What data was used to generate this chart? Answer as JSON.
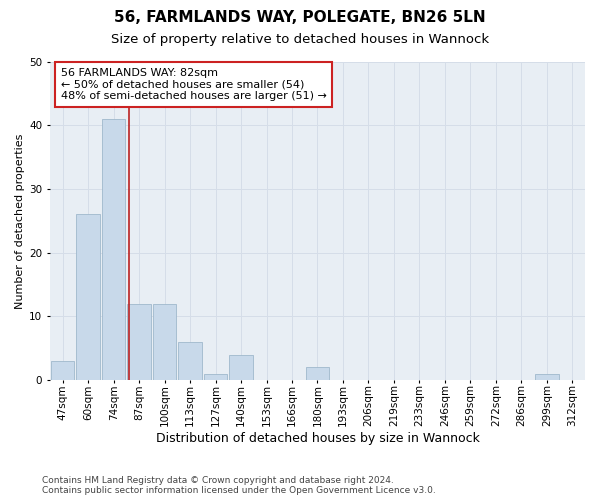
{
  "title1": "56, FARMLANDS WAY, POLEGATE, BN26 5LN",
  "title2": "Size of property relative to detached houses in Wannock",
  "xlabel": "Distribution of detached houses by size in Wannock",
  "ylabel": "Number of detached properties",
  "categories": [
    "47sqm",
    "60sqm",
    "74sqm",
    "87sqm",
    "100sqm",
    "113sqm",
    "127sqm",
    "140sqm",
    "153sqm",
    "166sqm",
    "180sqm",
    "193sqm",
    "206sqm",
    "219sqm",
    "233sqm",
    "246sqm",
    "259sqm",
    "272sqm",
    "286sqm",
    "299sqm",
    "312sqm"
  ],
  "values": [
    3,
    26,
    41,
    12,
    12,
    6,
    1,
    4,
    0,
    0,
    2,
    0,
    0,
    0,
    0,
    0,
    0,
    0,
    0,
    1,
    0
  ],
  "bar_color": "#c8d9ea",
  "bar_edge_color": "#a0b8cc",
  "grid_color": "#d5dde8",
  "background_color": "#e8eef4",
  "vline_color": "#bb2222",
  "ylim": [
    0,
    50
  ],
  "vline_x": 2.62,
  "annotation_text": "56 FARMLANDS WAY: 82sqm\n← 50% of detached houses are smaller (54)\n48% of semi-detached houses are larger (51) →",
  "annotation_box_color": "#ffffff",
  "annotation_box_edge_color": "#cc2222",
  "footer1": "Contains HM Land Registry data © Crown copyright and database right 2024.",
  "footer2": "Contains public sector information licensed under the Open Government Licence v3.0.",
  "title1_fontsize": 11,
  "title2_fontsize": 9.5,
  "xlabel_fontsize": 9,
  "ylabel_fontsize": 8,
  "tick_fontsize": 7.5,
  "annotation_fontsize": 8,
  "footer_fontsize": 6.5
}
